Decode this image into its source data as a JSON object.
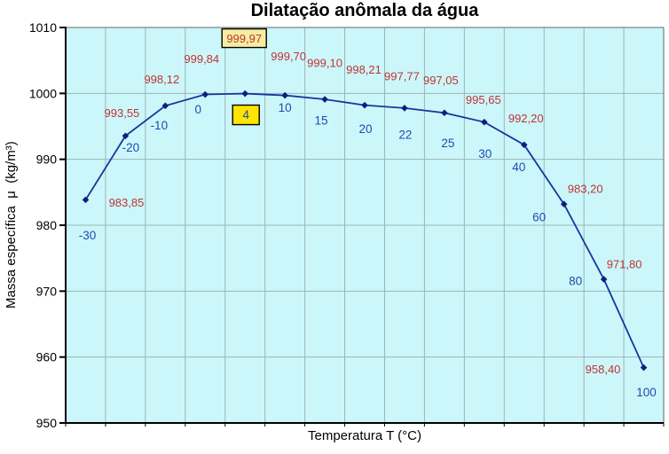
{
  "chart_data": {
    "type": "line",
    "title": "Dilatação anômala da água",
    "xlabel": "Temperatura T (°C)",
    "ylabel": "Massa específica  μ  (kg/m³)",
    "x_axis_type": "category",
    "ylim": [
      950,
      1010
    ],
    "yticks": [
      950,
      960,
      970,
      980,
      990,
      1000,
      1010
    ],
    "grid": true,
    "legend": false,
    "colors": {
      "plot_bg": "#ccf7fa",
      "grid": "#9db4b6",
      "frame": "#666666",
      "axis": "#000000",
      "line": "#16379f",
      "marker": "#0d1f7d",
      "value_label": "#bf3434",
      "temp_label": "#2148b1",
      "value_box_fill": "#f5eda0",
      "temp_box_fill": "#ffe400",
      "box_border": "#000000"
    },
    "points": [
      {
        "temperature_c": -30,
        "t_label": "-30",
        "value": 983.85,
        "value_label": "983,85",
        "value_offset": [
          46,
          3
        ],
        "t_offset": [
          2,
          40
        ],
        "value_boxed": false,
        "t_boxed": false
      },
      {
        "temperature_c": -20,
        "t_label": "-20",
        "value": 993.55,
        "value_label": "993,55",
        "value_offset": [
          -4,
          -26
        ],
        "t_offset": [
          6,
          13
        ],
        "value_boxed": false,
        "t_boxed": false
      },
      {
        "temperature_c": -10,
        "t_label": "-10",
        "value": 998.12,
        "value_label": "998,12",
        "value_offset": [
          -4,
          -30
        ],
        "t_offset": [
          -7,
          22
        ],
        "value_boxed": false,
        "t_boxed": false
      },
      {
        "temperature_c": 0,
        "t_label": "0",
        "value": 999.84,
        "value_label": "999,84",
        "value_offset": [
          -4,
          -40
        ],
        "t_offset": [
          -8,
          17
        ],
        "value_boxed": false,
        "t_boxed": false
      },
      {
        "temperature_c": 4,
        "t_label": "4",
        "value": 999.97,
        "value_label": "999,97",
        "value_offset": [
          -1,
          -62
        ],
        "t_offset": [
          1,
          24
        ],
        "value_boxed": true,
        "t_boxed": true
      },
      {
        "temperature_c": 10,
        "t_label": "10",
        "value": 999.7,
        "value_label": "999,70",
        "value_offset": [
          4,
          -44
        ],
        "t_offset": [
          0,
          14
        ],
        "value_boxed": false,
        "t_boxed": false
      },
      {
        "temperature_c": 15,
        "t_label": "15",
        "value": 999.1,
        "value_label": "999,10",
        "value_offset": [
          0,
          -41
        ],
        "t_offset": [
          -4,
          24
        ],
        "value_boxed": false,
        "t_boxed": false
      },
      {
        "temperature_c": 20,
        "t_label": "20",
        "value": 998.21,
        "value_label": "998,21",
        "value_offset": [
          -1,
          -40
        ],
        "t_offset": [
          1,
          27
        ],
        "value_boxed": false,
        "t_boxed": false
      },
      {
        "temperature_c": 22,
        "t_label": "22",
        "value": 997.77,
        "value_label": "997,77",
        "value_offset": [
          -3,
          -36
        ],
        "t_offset": [
          1,
          30
        ],
        "value_boxed": false,
        "t_boxed": false
      },
      {
        "temperature_c": 25,
        "t_label": "25",
        "value": 997.05,
        "value_label": "997,05",
        "value_offset": [
          -4,
          -37
        ],
        "t_offset": [
          4,
          34
        ],
        "value_boxed": false,
        "t_boxed": false
      },
      {
        "temperature_c": 30,
        "t_label": "30",
        "value": 995.65,
        "value_label": "995,65",
        "value_offset": [
          -1,
          -25
        ],
        "t_offset": [
          1,
          36
        ],
        "value_boxed": false,
        "t_boxed": false
      },
      {
        "temperature_c": 40,
        "t_label": "40",
        "value": 992.2,
        "value_label": "992,20",
        "value_offset": [
          2,
          -30
        ],
        "t_offset": [
          -6,
          25
        ],
        "value_boxed": false,
        "t_boxed": false
      },
      {
        "temperature_c": 60,
        "t_label": "60",
        "value": 983.2,
        "value_label": "983,20",
        "value_offset": [
          24,
          -17
        ],
        "t_offset": [
          -28,
          15
        ],
        "value_boxed": false,
        "t_boxed": false
      },
      {
        "temperature_c": 80,
        "t_label": "80",
        "value": 971.8,
        "value_label": "971,80",
        "value_offset": [
          23,
          -17
        ],
        "t_offset": [
          -32,
          2
        ],
        "value_boxed": false,
        "t_boxed": false
      },
      {
        "temperature_c": 100,
        "t_label": "100",
        "value": 958.4,
        "value_label": "958,40",
        "value_offset": [
          -46,
          2
        ],
        "t_offset": [
          3,
          28
        ],
        "value_boxed": false,
        "t_boxed": false
      }
    ]
  }
}
